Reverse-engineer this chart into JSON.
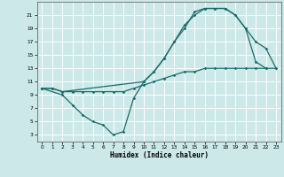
{
  "xlabel": "Humidex (Indice chaleur)",
  "xlim": [
    -0.5,
    23.5
  ],
  "ylim": [
    2,
    23
  ],
  "yticks": [
    3,
    5,
    7,
    9,
    11,
    13,
    15,
    17,
    19,
    21
  ],
  "xticks": [
    0,
    1,
    2,
    3,
    4,
    5,
    6,
    7,
    8,
    9,
    10,
    11,
    12,
    13,
    14,
    15,
    16,
    17,
    18,
    19,
    20,
    21,
    22,
    23
  ],
  "bg_color": "#cce8e8",
  "grid_color": "#b8d8d8",
  "line_color": "#1a6b6b",
  "line1_x": [
    0,
    1,
    2,
    3,
    4,
    5,
    6,
    7,
    8,
    9,
    10,
    11,
    12,
    13,
    14,
    15,
    16,
    17,
    18,
    19,
    20,
    21,
    22,
    23
  ],
  "line1_y": [
    10,
    10,
    9.5,
    9.5,
    9.5,
    9.5,
    9.5,
    9.5,
    9.5,
    10,
    10.5,
    11,
    11.5,
    12,
    12.5,
    12.5,
    13,
    13,
    13,
    13,
    13,
    13,
    13,
    13
  ],
  "line2_x": [
    0,
    1,
    2,
    10,
    11,
    12,
    13,
    14,
    15,
    16,
    17,
    18,
    19,
    20,
    21,
    22,
    23
  ],
  "line2_y": [
    10,
    10,
    9.5,
    11,
    12.5,
    14.5,
    17,
    19.5,
    21,
    22,
    22,
    22,
    21,
    19,
    17,
    16,
    13
  ],
  "line3_x": [
    0,
    2,
    3,
    4,
    5,
    6,
    7,
    8,
    9,
    10,
    11,
    12,
    13,
    14,
    15,
    16,
    17,
    18,
    19,
    20,
    21,
    22
  ],
  "line3_y": [
    10,
    9,
    7.5,
    6,
    5,
    4.5,
    3,
    3.5,
    8.5,
    11,
    12.5,
    14.5,
    17,
    19,
    21.5,
    22,
    22,
    22,
    21,
    19,
    14,
    13
  ]
}
